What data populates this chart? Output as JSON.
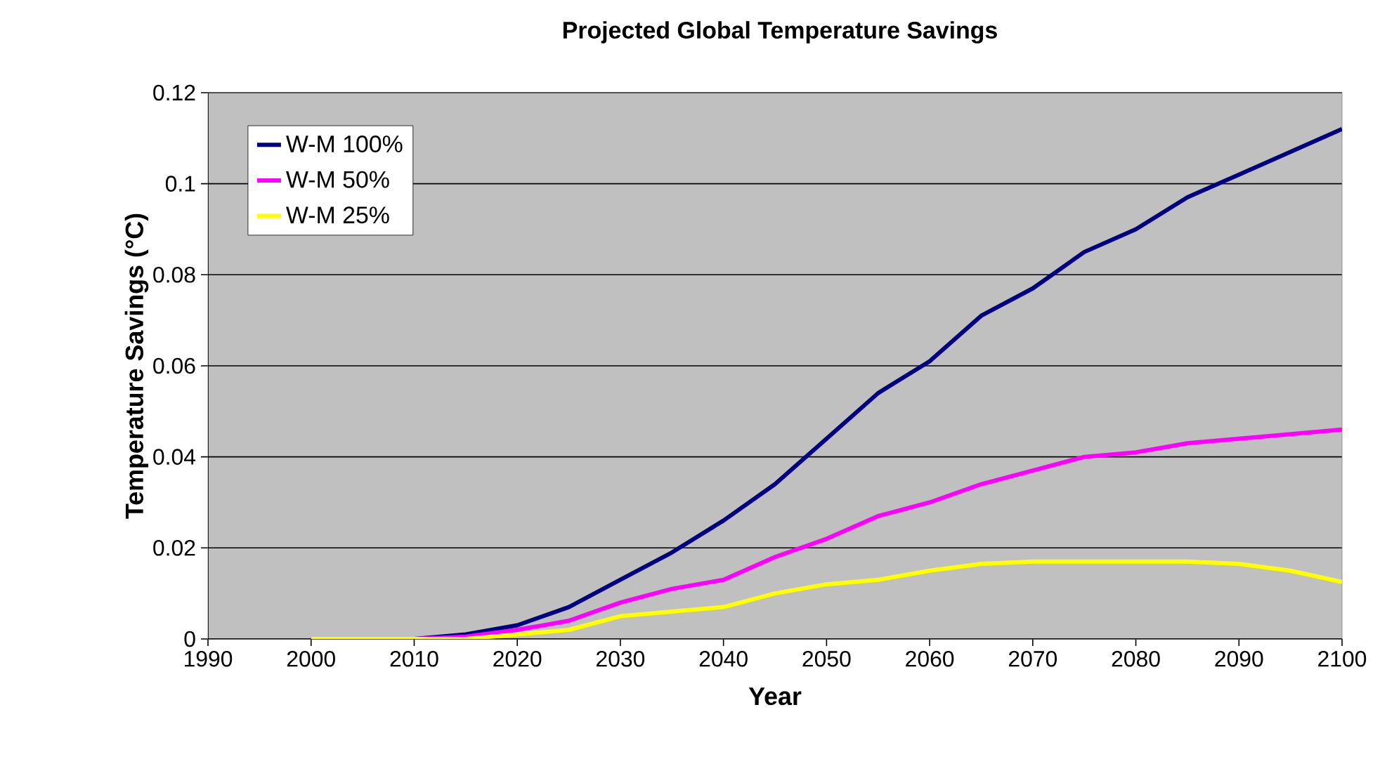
{
  "chart_data": {
    "type": "line",
    "title": "Projected Global Temperature Savings",
    "xlabel": "Year",
    "ylabel": "Temperature Savings (°C)",
    "x": [
      2000,
      2005,
      2010,
      2015,
      2020,
      2025,
      2030,
      2035,
      2040,
      2045,
      2050,
      2055,
      2060,
      2065,
      2070,
      2075,
      2080,
      2085,
      2090,
      2095,
      2100
    ],
    "series": [
      {
        "name": "W-M 100%",
        "color": "#000080",
        "values": [
          0,
          0,
          0,
          0.001,
          0.003,
          0.007,
          0.013,
          0.019,
          0.026,
          0.034,
          0.044,
          0.054,
          0.061,
          0.071,
          0.077,
          0.085,
          0.09,
          0.097,
          0.102,
          0.107,
          0.112
        ]
      },
      {
        "name": "W-M 50%",
        "color": "#ff00ff",
        "values": [
          0,
          0,
          0,
          0.0005,
          0.002,
          0.004,
          0.008,
          0.011,
          0.013,
          0.018,
          0.022,
          0.027,
          0.03,
          0.034,
          0.037,
          0.04,
          0.041,
          0.043,
          0.044,
          0.045,
          0.046
        ]
      },
      {
        "name": "W-M 25%",
        "color": "#ffff00",
        "values": [
          0,
          0,
          0,
          0,
          0.001,
          0.002,
          0.005,
          0.006,
          0.007,
          0.01,
          0.012,
          0.013,
          0.015,
          0.0165,
          0.017,
          0.017,
          0.017,
          0.017,
          0.0165,
          0.015,
          0.0125
        ]
      }
    ],
    "xlim": [
      1990,
      2100
    ],
    "ylim": [
      0,
      0.12
    ],
    "xticks": [
      1990,
      2000,
      2010,
      2020,
      2030,
      2040,
      2050,
      2060,
      2070,
      2080,
      2090,
      2100
    ],
    "yticks": [
      0,
      0.02,
      0.04,
      0.06,
      0.08,
      0.1,
      0.12
    ],
    "grid": "y",
    "legend": "top left",
    "marker": "none",
    "line_style": "solid"
  }
}
